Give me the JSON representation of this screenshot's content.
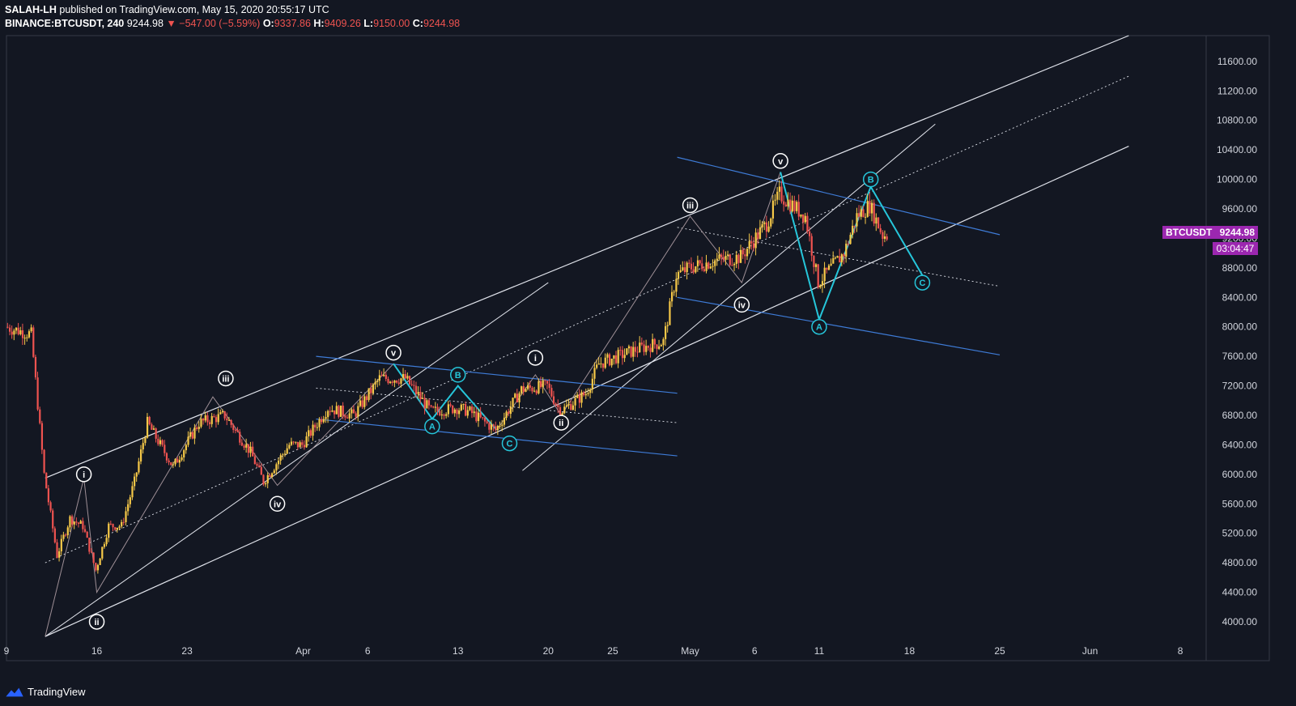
{
  "header": {
    "author": "SALAH-LH",
    "published_text": "published on TradingView.com, May 15, 2020 20:55:17 UTC",
    "symbol_line": "BINANCE:BTCUSDT, 240",
    "last": "9244.98",
    "change_arrow": "▼",
    "change": "−547.00 (−5.59%)",
    "o_label": "O:",
    "o_value": "9337.86",
    "h_label": "H:",
    "h_value": "9409.26",
    "l_label": "L:",
    "l_value": "9150.00",
    "c_label": "C:",
    "c_value": "9244.98"
  },
  "price_tag": {
    "symbol": "BTCUSDT",
    "value": "9244.98",
    "countdown": "03:04:47",
    "color": "#9c27b0"
  },
  "footer": {
    "brand": "TradingView",
    "logo_icon": "tradingview-logo-icon"
  },
  "colors": {
    "background": "#131722",
    "up": "#f7c948",
    "down": "#ef5350",
    "blue": "#3e7bd6",
    "cyan": "#26c6da"
  },
  "chart_data": {
    "type": "candlestick",
    "title": "",
    "ylim": [
      3780,
      11950
    ],
    "y_ticks": [
      4000,
      4400,
      4800,
      5200,
      5600,
      6000,
      6400,
      6800,
      7200,
      7600,
      8000,
      8400,
      8800,
      9200,
      9600,
      10000,
      10400,
      10800,
      11200,
      11600
    ],
    "y_tick_labels": [
      "4000.00",
      "4400.00",
      "4800.00",
      "5200.00",
      "5600.00",
      "6000.00",
      "6400.00",
      "6800.00",
      "7200.00",
      "7600.00",
      "8000.00",
      "8400.00",
      "8800.00",
      "9200.00",
      "9600.00",
      "10000.00",
      "10400.00",
      "10800.00",
      "11200.00",
      "11600.00"
    ],
    "x_domain_days": [
      "2020-03-09",
      "2020-06-10"
    ],
    "x_ticks": [
      {
        "date": "2020-03-09",
        "label": "9"
      },
      {
        "date": "2020-03-16",
        "label": "16"
      },
      {
        "date": "2020-03-23",
        "label": "23"
      },
      {
        "date": "2020-04-01",
        "label": "Apr"
      },
      {
        "date": "2020-04-06",
        "label": "6"
      },
      {
        "date": "2020-04-13",
        "label": "13"
      },
      {
        "date": "2020-04-20",
        "label": "20"
      },
      {
        "date": "2020-04-25",
        "label": "25"
      },
      {
        "date": "2020-05-01",
        "label": "May"
      },
      {
        "date": "2020-05-06",
        "label": "6"
      },
      {
        "date": "2020-05-11",
        "label": "11"
      },
      {
        "date": "2020-05-18",
        "label": "18"
      },
      {
        "date": "2020-05-25",
        "label": "25"
      },
      {
        "date": "2020-06-01",
        "label": "Jun"
      },
      {
        "date": "2020-06-08",
        "label": "8"
      }
    ],
    "price_path": [
      [
        "2020-03-09",
        8000
      ],
      [
        "2020-03-11",
        7900
      ],
      [
        "2020-03-12",
        6000
      ],
      [
        "2020-03-13",
        4900
      ],
      [
        "2020-03-14",
        5400
      ],
      [
        "2020-03-15",
        5300
      ],
      [
        "2020-03-16",
        4700
      ],
      [
        "2020-03-17",
        5300
      ],
      [
        "2020-03-18",
        5300
      ],
      [
        "2020-03-19",
        5900
      ],
      [
        "2020-03-20",
        6700
      ],
      [
        "2020-03-22",
        6100
      ],
      [
        "2020-03-24",
        6700
      ],
      [
        "2020-03-26",
        6800
      ],
      [
        "2020-03-28",
        6300
      ],
      [
        "2020-03-29",
        5900
      ],
      [
        "2020-03-31",
        6400
      ],
      [
        "2020-04-01",
        6400
      ],
      [
        "2020-04-03",
        6900
      ],
      [
        "2020-04-05",
        6800
      ],
      [
        "2020-04-07",
        7300
      ],
      [
        "2020-04-09",
        7300
      ],
      [
        "2020-04-11",
        6850
      ],
      [
        "2020-04-13",
        6900
      ],
      [
        "2020-04-14",
        6850
      ],
      [
        "2020-04-16",
        6600
      ],
      [
        "2020-04-18",
        7150
      ],
      [
        "2020-04-20",
        7200
      ],
      [
        "2020-04-21",
        6850
      ],
      [
        "2020-04-23",
        7100
      ],
      [
        "2020-04-24",
        7500
      ],
      [
        "2020-04-27",
        7700
      ],
      [
        "2020-04-29",
        7800
      ],
      [
        "2020-04-30",
        8700
      ],
      [
        "2020-05-01",
        8800
      ],
      [
        "2020-05-03",
        8900
      ],
      [
        "2020-05-05",
        8950
      ],
      [
        "2020-05-07",
        9400
      ],
      [
        "2020-05-08",
        9800
      ],
      [
        "2020-05-10",
        9500
      ],
      [
        "2020-05-11",
        8600
      ],
      [
        "2020-05-12",
        8800
      ],
      [
        "2020-05-13",
        9000
      ],
      [
        "2020-05-14",
        9500
      ],
      [
        "2020-05-15",
        9650
      ],
      [
        "2020-05-16",
        9245
      ]
    ],
    "wave_labels": [
      {
        "text": "i",
        "date": "2020-03-15",
        "price": 6000,
        "style": "white"
      },
      {
        "text": "ii",
        "date": "2020-03-16",
        "price": 4000,
        "style": "white"
      },
      {
        "text": "iii",
        "date": "2020-03-26",
        "price": 7300,
        "style": "white"
      },
      {
        "text": "iv",
        "date": "2020-03-30",
        "price": 5600,
        "style": "white"
      },
      {
        "text": "v",
        "date": "2020-04-08",
        "price": 7650,
        "style": "white"
      },
      {
        "text": "A",
        "date": "2020-04-11",
        "price": 6650,
        "style": "cyan"
      },
      {
        "text": "B",
        "date": "2020-04-13",
        "price": 7350,
        "style": "cyan"
      },
      {
        "text": "C",
        "date": "2020-04-17",
        "price": 6420,
        "style": "cyan"
      },
      {
        "text": "i",
        "date": "2020-04-19",
        "price": 7580,
        "style": "white"
      },
      {
        "text": "ii",
        "date": "2020-04-21",
        "price": 6700,
        "style": "white"
      },
      {
        "text": "iii",
        "date": "2020-05-01",
        "price": 9650,
        "style": "white"
      },
      {
        "text": "iv",
        "date": "2020-05-05",
        "price": 8300,
        "style": "white"
      },
      {
        "text": "v",
        "date": "2020-05-08",
        "price": 10250,
        "style": "white"
      },
      {
        "text": "A",
        "date": "2020-05-11",
        "price": 8000,
        "style": "cyan"
      },
      {
        "text": "B",
        "date": "2020-05-15",
        "price": 10000,
        "style": "cyan"
      },
      {
        "text": "C",
        "date": "2020-05-19",
        "price": 8600,
        "style": "cyan"
      }
    ]
  }
}
